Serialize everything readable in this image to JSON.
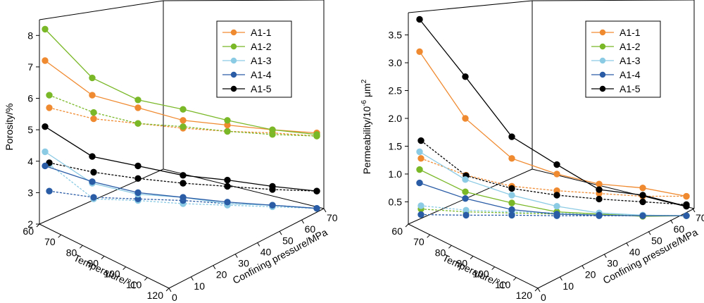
{
  "chart_data": [
    {
      "type": "line",
      "ylabel": "Porosity/%",
      "xlabel": "Temperature/°C",
      "zlabel": "Confining pressure/MPa",
      "yticks": [
        "2",
        "3",
        "4",
        "5",
        "6",
        "7",
        "8"
      ],
      "xticks": [
        "60",
        "70",
        "80",
        "90",
        "100",
        "110",
        "120"
      ],
      "zticks": [
        "0",
        "10",
        "20",
        "30",
        "40",
        "50",
        "60",
        "70"
      ],
      "legend_position": "top-right",
      "series": [
        {
          "name": "A1-1",
          "color": "#f08a30",
          "solid": [
            7.2,
            6.1,
            5.7,
            5.3,
            5.15,
            5.0,
            4.9
          ],
          "dashed": [
            5.7,
            5.35,
            5.2,
            5.05,
            4.95,
            4.9,
            4.8
          ]
        },
        {
          "name": "A1-2",
          "color": "#7ab828",
          "solid": [
            8.2,
            6.65,
            5.95,
            5.65,
            5.3,
            5.0,
            4.85
          ],
          "dashed": [
            6.1,
            5.55,
            5.2,
            5.1,
            4.95,
            4.85,
            4.8
          ]
        },
        {
          "name": "A1-3",
          "color": "#8ccbe4",
          "solid": [
            4.3,
            3.3,
            2.95,
            2.85,
            2.65,
            2.6,
            2.5
          ],
          "dashed": [
            3.9,
            2.8,
            2.75,
            2.65,
            2.6,
            2.55,
            2.5
          ]
        },
        {
          "name": "A1-4",
          "color": "#2a5ca6",
          "solid": [
            3.85,
            3.35,
            3.0,
            2.85,
            2.7,
            2.6,
            2.5
          ],
          "dashed": [
            3.05,
            2.85,
            2.8,
            2.75,
            2.65,
            2.6,
            2.5
          ]
        },
        {
          "name": "A1-5",
          "color": "#000000",
          "solid": [
            5.1,
            4.15,
            3.85,
            3.55,
            3.4,
            3.2,
            3.05
          ],
          "dashed": [
            3.95,
            3.65,
            3.45,
            3.3,
            3.2,
            3.1,
            3.05
          ]
        }
      ]
    },
    {
      "type": "line",
      "ylabel": "Permeability/10",
      "ylabel_sup": "-6",
      "ylabel_unit": " μm",
      "ylabel_unit_sup": "2",
      "xlabel": "Temperature/°C",
      "zlabel": "Confining pressure/MPa",
      "yticks": [
        "0.5",
        "1.0",
        "1.5",
        "2.0",
        "2.5",
        "3.0",
        "3.5"
      ],
      "xticks": [
        "60",
        "70",
        "80",
        "90",
        "100",
        "110",
        "120"
      ],
      "zticks": [
        "0",
        "10",
        "20",
        "30",
        "40",
        "50",
        "60",
        "70"
      ],
      "legend_position": "top-right",
      "series": [
        {
          "name": "A1-1",
          "color": "#f08a30",
          "solid": [
            3.2,
            2.0,
            1.28,
            1.0,
            0.82,
            0.75,
            0.6
          ],
          "dashed": [
            1.28,
            0.98,
            0.78,
            0.7,
            0.65,
            0.6,
            0.6
          ]
        },
        {
          "name": "A1-2",
          "color": "#7ab828",
          "solid": [
            1.08,
            0.68,
            0.48,
            0.32,
            0.28,
            0.24,
            0.25
          ],
          "dashed": [
            0.37,
            0.32,
            0.3,
            0.28,
            0.26,
            0.25,
            0.25
          ]
        },
        {
          "name": "A1-3",
          "color": "#8ccbe4",
          "solid": [
            1.4,
            0.9,
            0.62,
            0.42,
            0.3,
            0.26,
            0.25
          ],
          "dashed": [
            0.43,
            0.35,
            0.32,
            0.3,
            0.28,
            0.26,
            0.25
          ]
        },
        {
          "name": "A1-4",
          "color": "#2a5ca6",
          "solid": [
            0.84,
            0.56,
            0.36,
            0.28,
            0.26,
            0.25,
            0.25
          ],
          "dashed": [
            0.27,
            0.26,
            0.26,
            0.25,
            0.25,
            0.25,
            0.25
          ]
        },
        {
          "name": "A1-5",
          "color": "#000000",
          "solid": [
            3.78,
            2.75,
            1.67,
            1.17,
            0.72,
            0.62,
            0.42
          ],
          "dashed": [
            1.6,
            0.97,
            0.74,
            0.62,
            0.55,
            0.5,
            0.45
          ]
        }
      ]
    }
  ]
}
